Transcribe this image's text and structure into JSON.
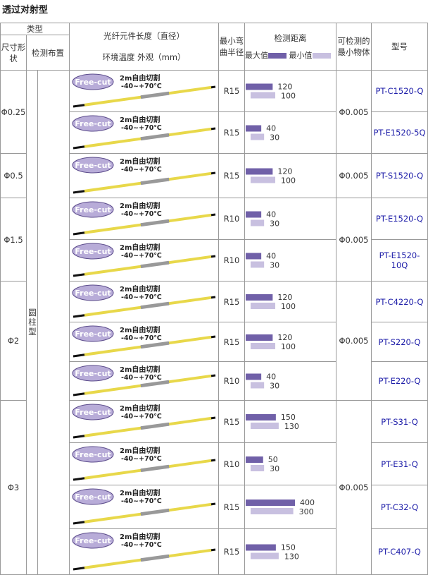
{
  "title": "透过对射型",
  "header": {
    "type": "类型",
    "size_shape": "尺寸形状",
    "arrangement": "检测布置",
    "fiber_length": "光纤元件长度（直径）",
    "env": "环境温度 外观（mm）",
    "bend_radius": "最小弯曲半径",
    "distance": "检测距离",
    "max_label": "最大值",
    "min_label": "最小值",
    "min_object": "可检测的最小物体",
    "model": "型号"
  },
  "arrangement": "圆柱型",
  "fiber_image": {
    "badge": "Free-cut",
    "length": "2m自由切割",
    "temp": "-40~+70℃"
  },
  "rows": [
    {
      "size": "Φ0.25",
      "bend": "R15",
      "max": 120,
      "min": 100,
      "min_object": "Φ0.005",
      "model": "PT-C1520-Q"
    },
    {
      "bend": "R15",
      "max": 40,
      "min": 30,
      "model": "PT-E1520-5Q"
    },
    {
      "size": "Φ0.5",
      "bend": "R15",
      "max": 120,
      "min": 100,
      "min_object": "Φ0.005",
      "model": "PT-S1520-Q"
    },
    {
      "size": "Φ1.5",
      "bend": "R10",
      "max": 40,
      "min": 30,
      "min_object": "Φ0.005",
      "model": "PT-E1520-Q"
    },
    {
      "bend": "R10",
      "max": 40,
      "min": 30,
      "model": "PT-E1520-10Q"
    },
    {
      "size": "Φ2",
      "bend": "R15",
      "max": 120,
      "min": 100,
      "min_object": "Φ0.005",
      "model": "PT-C4220-Q"
    },
    {
      "bend": "R15",
      "max": 120,
      "min": 100,
      "model": "PT-S220-Q"
    },
    {
      "bend": "R10",
      "max": 40,
      "min": 30,
      "model": "PT-E220-Q"
    },
    {
      "size": "Φ3",
      "bend": "R15",
      "max": 150,
      "min": 130,
      "min_object": "Φ0.005",
      "model": "PT-S31-Q"
    },
    {
      "bend": "R10",
      "max": 50,
      "min": 30,
      "model": "PT-E31-Q"
    },
    {
      "bend": "R15",
      "max": 400,
      "min": 300,
      "model": "PT-C32-Q"
    },
    {
      "bend": "R15",
      "max": 150,
      "min": 130,
      "model": "PT-C407-Q"
    }
  ]
}
